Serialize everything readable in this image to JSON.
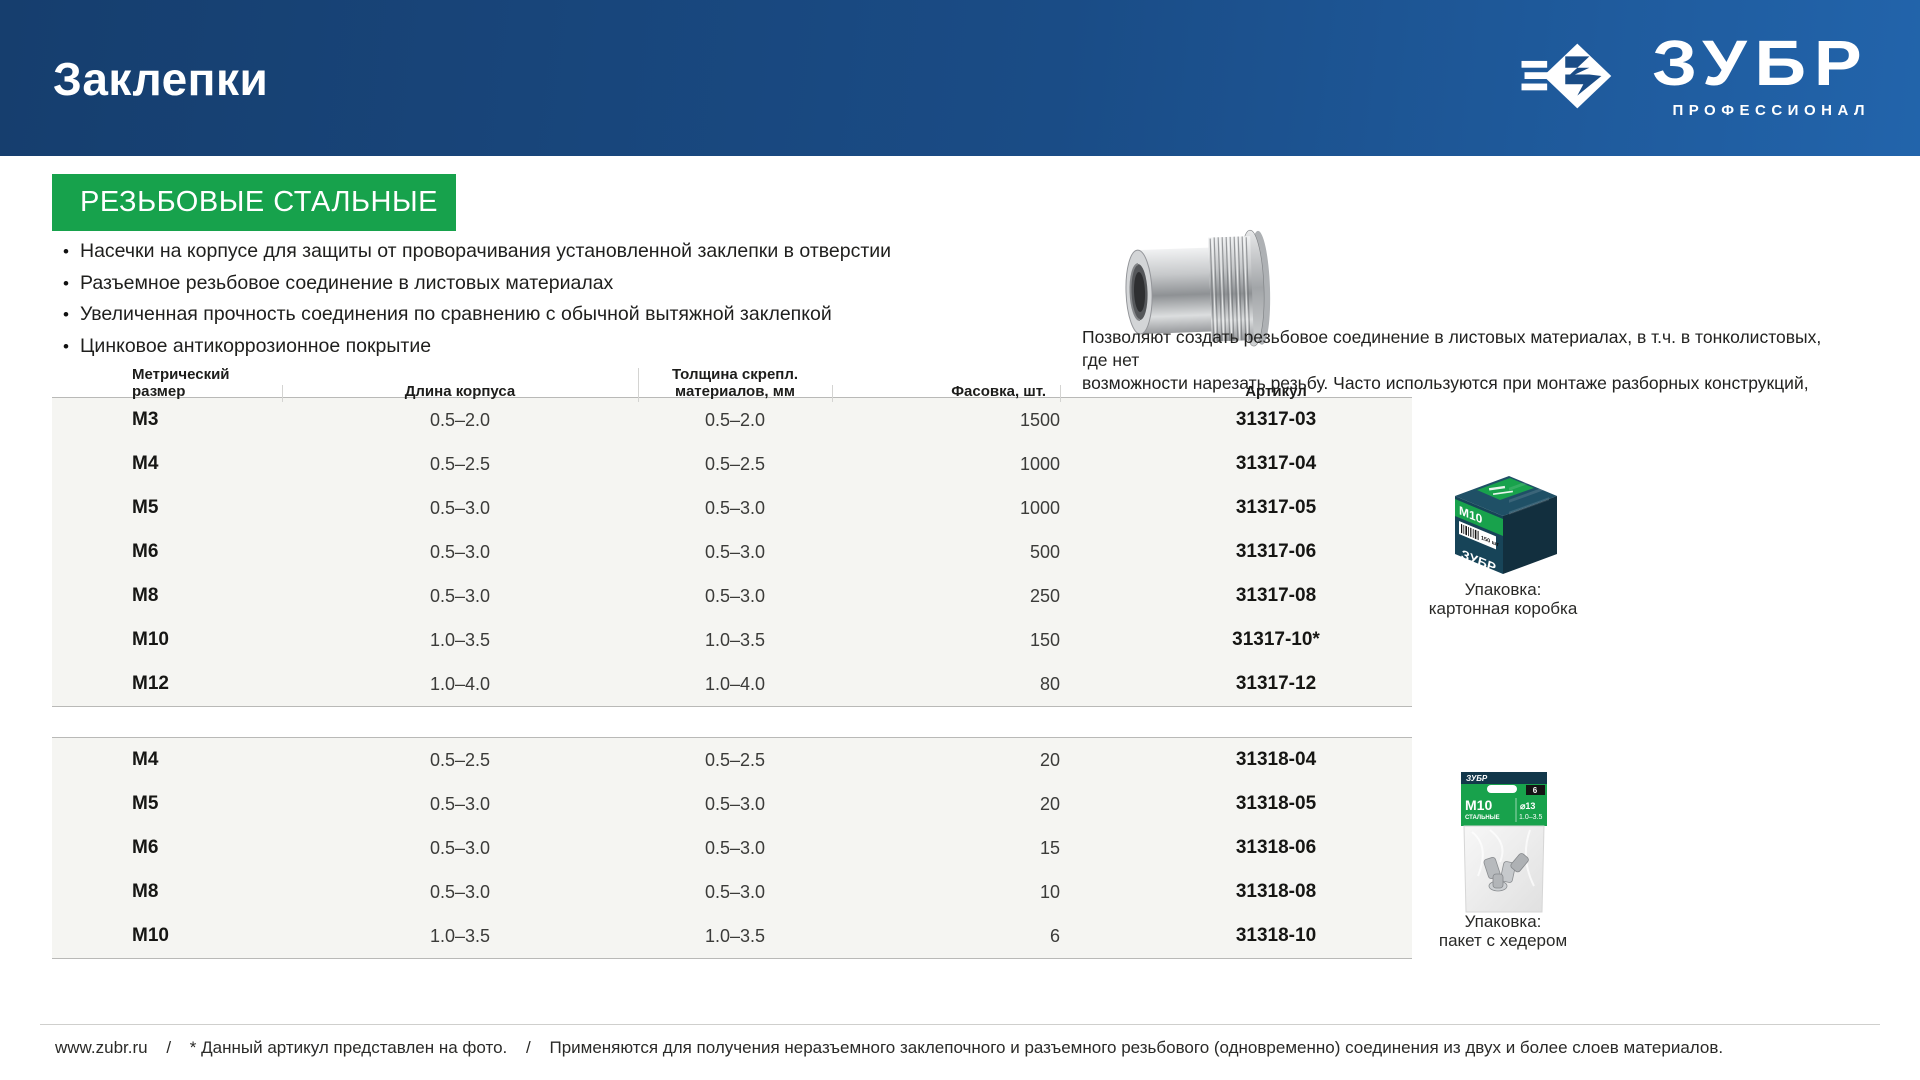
{
  "header": {
    "title": "Заклепки",
    "brand": "ЗУБР",
    "brand_tagline": "ПРОФЕССИОНАЛ"
  },
  "badge": "РЕЗЬБОВЫЕ СТАЛЬНЫЕ",
  "features": [
    "Насечки на корпусе для защиты от проворачивания установленной заклепки в отверстии",
    "Разъемное резьбовое соединение в листовых материалах",
    "Увеличенная прочность соединения по сравнению с обычной вытяжной заклепкой",
    "Цинковое антикоррозионное покрытие"
  ],
  "description_lines": [
    "Позволяют создать резьбовое соединение в листовых материалах, в т.ч. в тонколистовых, где нет",
    "возможности нарезать резьбу. Часто используются при монтаже разборных конструкций, корпусов и т.д."
  ],
  "table": {
    "headers": [
      "Метрический размер",
      "Длина корпуса",
      "Толщина скрепл. материалов, мм",
      "Фасовка, шт.",
      "Артикул"
    ],
    "groups": [
      {
        "rows": [
          [
            "М3",
            "0.5–2.0",
            "0.5–2.0",
            "1500",
            "31317-03"
          ],
          [
            "М4",
            "0.5–2.5",
            "0.5–2.5",
            "1000",
            "31317-04"
          ],
          [
            "М5",
            "0.5–3.0",
            "0.5–3.0",
            "1000",
            "31317-05"
          ],
          [
            "М6",
            "0.5–3.0",
            "0.5–3.0",
            "500",
            "31317-06"
          ],
          [
            "М8",
            "0.5–3.0",
            "0.5–3.0",
            "250",
            "31317-08"
          ],
          [
            "М10",
            "1.0–3.5",
            "1.0–3.5",
            "150",
            "31317-10*"
          ],
          [
            "М12",
            "1.0–4.0",
            "1.0–4.0",
            "80",
            "31317-12"
          ]
        ]
      },
      {
        "rows": [
          [
            "М4",
            "0.5–2.5",
            "0.5–2.5",
            "20",
            "31318-04"
          ],
          [
            "М5",
            "0.5–3.0",
            "0.5–3.0",
            "20",
            "31318-05"
          ],
          [
            "М6",
            "0.5–3.0",
            "0.5–3.0",
            "15",
            "31318-06"
          ],
          [
            "М8",
            "0.5–3.0",
            "0.5–3.0",
            "10",
            "31318-08"
          ],
          [
            "М10",
            "1.0–3.5",
            "1.0–3.5",
            "6",
            "31318-10"
          ]
        ]
      }
    ]
  },
  "packaging": [
    {
      "caption": [
        "Упаковка:",
        "картонная коробка"
      ],
      "box_brand": "ЗУБР",
      "box_size_label": "M10",
      "box_qty": "150 шт"
    },
    {
      "caption": [
        "Упаковка:",
        "пакет с хедером"
      ],
      "bag_brand": "ЗУБР",
      "bag_size_label": "M10",
      "bag_type": "СТАЛЬНЫЕ",
      "bag_diameter": "⌀13",
      "bag_range": "1.0–3.5",
      "bag_qty": "6"
    }
  ],
  "footer": {
    "site": "www.zubr.ru",
    "separator": "/",
    "note_photo": "* Данный артикул представлен на фото.",
    "note_usage": "Применяются для получения неразъемного заклепочного и разъемного резьбового (одновременно) соединения из двух и более слоев материалов."
  },
  "colors": {
    "header_blue_dark": "#163e6e",
    "header_blue_light": "#2264ab",
    "accent_green": "#17a24c",
    "table_bg": "#f5f5f2",
    "rule_gray": "#b9b9b7"
  }
}
